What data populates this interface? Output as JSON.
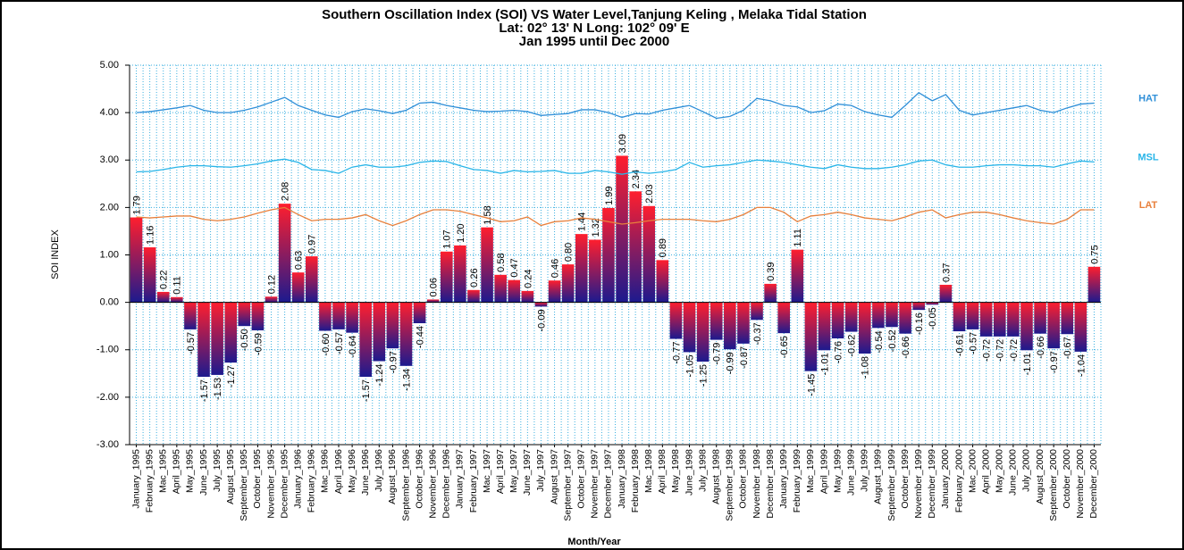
{
  "chart_data": {
    "type": "bar",
    "title": "Southern Oscillation Index (SOI) VS Water Level,Tanjung Keling , Melaka Tidal Station",
    "subtitle": [
      "Lat: 02° 13' N Long: 102° 09' E",
      "Jan 1995 until Dec 2000"
    ],
    "x_label": "Month/Year",
    "y_label": "SOI INDEX",
    "categories": [
      "January_1995",
      "February_1995",
      "Mac_1995",
      "April_1995",
      "May_1995",
      "June_1995",
      "July_1995",
      "August_1995",
      "September_1995",
      "October_1995",
      "November_1995",
      "December_1995",
      "January_1996",
      "February_1996",
      "Mac_1996",
      "April_1996",
      "May_1996",
      "June_1996",
      "July_1996",
      "August_1996",
      "September_1996",
      "October_1996",
      "November_1996",
      "December_1996",
      "January_1997",
      "February_1997",
      "Mac_1997",
      "April_1997",
      "May_1997",
      "June_1997",
      "July_1997",
      "August_1997",
      "September_1997",
      "October_1997",
      "November_1997",
      "December_1997",
      "January_1998",
      "February_1998",
      "Mac_1998",
      "April_1998",
      "May_1998",
      "June_1998",
      "July_1998",
      "August_1998",
      "September_1998",
      "October_1998",
      "November_1998",
      "December_1998",
      "January_1999",
      "February_1999",
      "Mac_1999",
      "April_1999",
      "May_1999",
      "June_1999",
      "July_1999",
      "August_1999",
      "September_1999",
      "October_1999",
      "November_1999",
      "December_1999",
      "January_2000",
      "February_2000",
      "Mac_2000",
      "April_2000",
      "May_2000",
      "June_2000",
      "July_2000",
      "August_2000",
      "September_2000",
      "October_2000",
      "November_2000",
      "December_2000"
    ],
    "values": [
      1.79,
      1.16,
      0.22,
      0.11,
      -0.57,
      -1.57,
      -1.53,
      -1.27,
      -0.5,
      -0.59,
      0.12,
      2.08,
      0.63,
      0.97,
      -0.6,
      -0.57,
      -0.64,
      -1.57,
      -1.24,
      -0.97,
      -1.34,
      -0.44,
      0.06,
      1.07,
      1.2,
      0.26,
      1.58,
      0.58,
      0.47,
      0.24,
      -0.09,
      0.46,
      0.8,
      1.44,
      1.32,
      1.99,
      3.09,
      2.34,
      2.03,
      0.89,
      -0.77,
      -1.05,
      -1.25,
      -0.79,
      -0.99,
      -0.87,
      -0.37,
      0.39,
      -0.65,
      1.11,
      -1.45,
      -1.01,
      -0.76,
      -0.62,
      -1.08,
      -0.54,
      -0.52,
      -0.66,
      -0.16,
      -0.05,
      0.37,
      -0.61,
      -0.57,
      -0.72,
      -0.72,
      -0.72,
      -1.01,
      -0.66,
      -0.97,
      -0.67,
      -1.04,
      0.75
    ],
    "value_labels": [
      "1.79",
      "1.16",
      "0.22",
      "0.11",
      "-0.57",
      "-1.57",
      "-1.53",
      "-1.27",
      "-0.50",
      "-0.59",
      "0.12",
      "2.08",
      "0.63",
      "0.97",
      "-0.60",
      "-0.57",
      "-0.64",
      "-1.57",
      "-1.24",
      "-0.97",
      "-1.34",
      "-0.44",
      "0.06",
      "1.07",
      "1.20",
      "0.26",
      "1.58",
      "0.58",
      "0.47",
      "0.24",
      "-0.09",
      "0.46",
      "0.80",
      "1.44",
      "1.32",
      "1.99",
      "3.09",
      "2.34",
      "2.03",
      "0.89",
      "-0.77",
      "-1.05",
      "-1.25",
      "-0.79",
      "-0.99",
      "-0.87",
      "-0.37",
      "0.39",
      "-0.65",
      "1.11",
      "-1.45",
      "-1.01",
      "-0.76",
      "-0.62",
      "-1.08",
      "-0.54",
      "-0.52",
      "-0.66",
      "-0.16",
      "-0.05",
      "0.37",
      "-0.61",
      "-0.57",
      "-0.72",
      "-0.72",
      "-0.72",
      "-1.01",
      "-0.66",
      "-0.97",
      "-0.67",
      "-1.04",
      "0.75"
    ],
    "bar_gradient": [
      "#ff1e2e",
      "#1c1a8e"
    ],
    "lines": [
      {
        "name": "HAT",
        "color": "#2f8fd8",
        "values": [
          4.0,
          4.02,
          4.06,
          4.1,
          4.15,
          4.05,
          4.0,
          4.0,
          4.05,
          4.12,
          4.22,
          4.32,
          4.15,
          4.05,
          3.95,
          3.9,
          4.02,
          4.08,
          4.04,
          3.98,
          4.05,
          4.2,
          4.22,
          4.15,
          4.1,
          4.05,
          4.02,
          4.03,
          4.05,
          4.02,
          3.94,
          3.96,
          3.98,
          4.06,
          4.06,
          4.0,
          3.9,
          3.98,
          3.97,
          4.05,
          4.1,
          4.15,
          4.02,
          3.88,
          3.92,
          4.05,
          4.3,
          4.25,
          4.15,
          4.12,
          4.0,
          4.04,
          4.18,
          4.15,
          4.02,
          3.95,
          3.9,
          4.15,
          4.42,
          4.25,
          4.38,
          4.05,
          3.95,
          4.0,
          4.05,
          4.1,
          4.15,
          4.05,
          4.0,
          4.1,
          4.18,
          4.2
        ]
      },
      {
        "name": "MSL",
        "color": "#29b5e8",
        "values": [
          2.75,
          2.76,
          2.8,
          2.85,
          2.88,
          2.88,
          2.86,
          2.85,
          2.88,
          2.92,
          2.98,
          3.02,
          2.95,
          2.8,
          2.78,
          2.72,
          2.85,
          2.9,
          2.85,
          2.85,
          2.88,
          2.95,
          2.98,
          2.97,
          2.88,
          2.8,
          2.78,
          2.72,
          2.78,
          2.75,
          2.76,
          2.78,
          2.72,
          2.72,
          2.78,
          2.75,
          2.7,
          2.75,
          2.72,
          2.75,
          2.8,
          2.95,
          2.85,
          2.88,
          2.9,
          2.95,
          3.0,
          2.98,
          2.95,
          2.9,
          2.85,
          2.82,
          2.9,
          2.85,
          2.82,
          2.82,
          2.85,
          2.9,
          2.98,
          3.0,
          2.9,
          2.85,
          2.85,
          2.88,
          2.9,
          2.9,
          2.88,
          2.88,
          2.85,
          2.92,
          2.98,
          2.96
        ]
      },
      {
        "name": "LAT",
        "color": "#e8803c",
        "values": [
          1.8,
          1.78,
          1.8,
          1.82,
          1.82,
          1.75,
          1.72,
          1.75,
          1.8,
          1.88,
          1.95,
          2.0,
          1.85,
          1.72,
          1.75,
          1.75,
          1.78,
          1.85,
          1.72,
          1.62,
          1.72,
          1.85,
          1.95,
          1.95,
          1.92,
          1.85,
          1.78,
          1.7,
          1.72,
          1.8,
          1.62,
          1.7,
          1.72,
          1.78,
          1.75,
          1.7,
          1.65,
          1.68,
          1.72,
          1.75,
          1.75,
          1.75,
          1.72,
          1.7,
          1.75,
          1.85,
          2.0,
          2.0,
          1.9,
          1.7,
          1.82,
          1.85,
          1.9,
          1.85,
          1.78,
          1.75,
          1.72,
          1.8,
          1.9,
          1.95,
          1.78,
          1.85,
          1.9,
          1.9,
          1.85,
          1.78,
          1.72,
          1.68,
          1.65,
          1.75,
          1.95,
          1.95
        ]
      }
    ],
    "ylim": [
      -3,
      5
    ],
    "yticks": [
      {
        "value": -3,
        "label": "-3.00"
      },
      {
        "value": -2,
        "label": "-2.00"
      },
      {
        "value": -1,
        "label": "-1.00"
      },
      {
        "value": 0,
        "label": "0.00"
      },
      {
        "value": 1,
        "label": "1.00"
      },
      {
        "value": 2,
        "label": "2.00"
      },
      {
        "value": 3,
        "label": "3.00"
      },
      {
        "value": 4,
        "label": "4.00"
      },
      {
        "value": 5,
        "label": "5.00"
      }
    ],
    "grid": true,
    "grid_color": "#3cb0e0"
  }
}
